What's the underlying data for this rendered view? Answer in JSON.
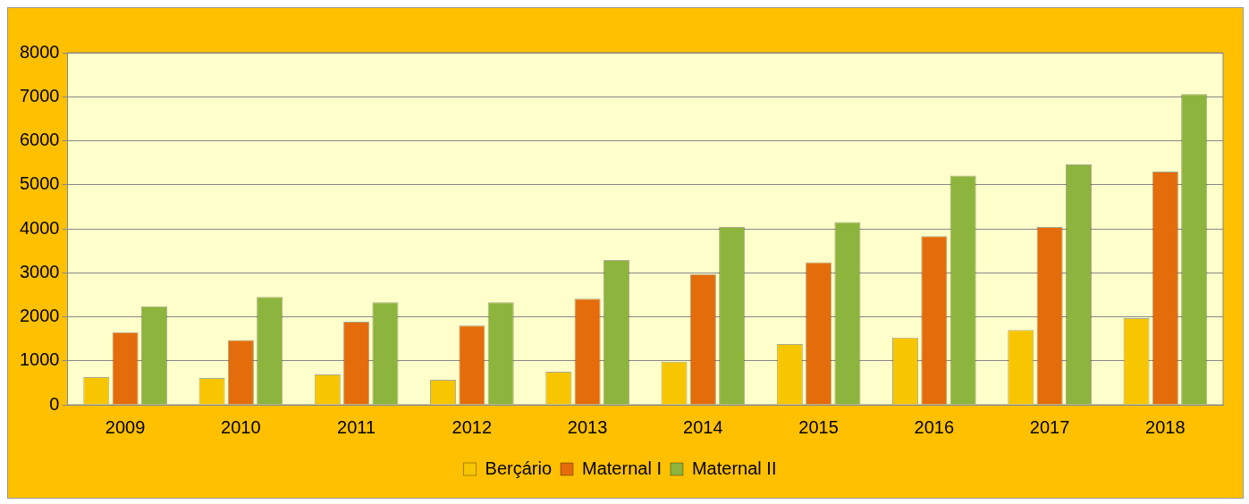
{
  "chart_data": {
    "type": "bar",
    "categories": [
      "2009",
      "2010",
      "2011",
      "2012",
      "2013",
      "2014",
      "2015",
      "2016",
      "2017",
      "2018"
    ],
    "series": [
      {
        "name": "Berçário",
        "color": "#f7c600",
        "values": [
          630,
          610,
          690,
          570,
          750,
          980,
          1380,
          1530,
          1700,
          1970
        ]
      },
      {
        "name": "Maternal I",
        "color": "#e46c0a",
        "values": [
          1650,
          1470,
          1890,
          1800,
          2410,
          2970,
          3240,
          3830,
          4040,
          5300
        ]
      },
      {
        "name": "Maternal II",
        "color": "#8db43c",
        "values": [
          2240,
          2450,
          2330,
          2330,
          3290,
          4040,
          4150,
          5210,
          5460,
          7060
        ]
      }
    ],
    "ylim": [
      0,
      8000
    ],
    "yticks": [
      0,
      1000,
      2000,
      3000,
      4000,
      5000,
      6000,
      7000,
      8000
    ],
    "grid": "y",
    "legend": "bottom"
  }
}
